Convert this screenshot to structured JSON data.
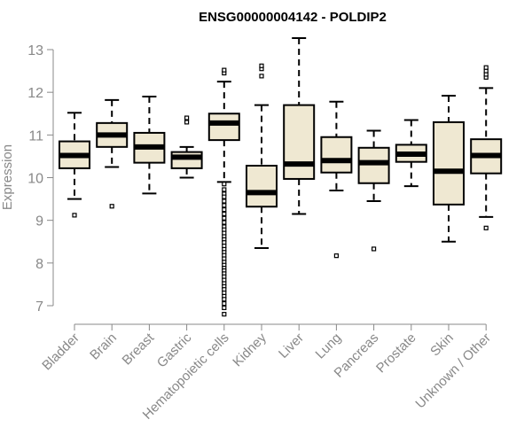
{
  "chart_data": {
    "type": "box",
    "title": "ENSG00000004142 - POLDIP2",
    "xlabel": "",
    "ylabel": "Expression",
    "ylim": [
      6.7,
      13.3
    ],
    "yticks": [
      7,
      8,
      9,
      10,
      11,
      12,
      13
    ],
    "grid": false,
    "colors": {
      "box_fill": "#efe8d2",
      "stroke": "#000000",
      "axis": "#888888",
      "text": "#888888"
    },
    "categories": [
      "Bladder",
      "Brain",
      "Breast",
      "Gastric",
      "Hematopoietic cells",
      "Kidney",
      "Liver",
      "Lung",
      "Pancreas",
      "Prostate",
      "Skin",
      "Unknown / Other"
    ],
    "boxes": [
      {
        "name": "Bladder",
        "whisker_low": 9.5,
        "q1": 10.22,
        "median": 10.52,
        "q3": 10.85,
        "whisker_high": 11.52,
        "outliers": [
          9.12
        ]
      },
      {
        "name": "Brain",
        "whisker_low": 10.25,
        "q1": 10.72,
        "median": 11.0,
        "q3": 11.28,
        "whisker_high": 11.82,
        "outliers": [
          9.33
        ]
      },
      {
        "name": "Breast",
        "whisker_low": 9.63,
        "q1": 10.35,
        "median": 10.72,
        "q3": 11.05,
        "whisker_high": 11.9,
        "outliers": []
      },
      {
        "name": "Gastric",
        "whisker_low": 10.0,
        "q1": 10.22,
        "median": 10.48,
        "q3": 10.6,
        "whisker_high": 10.72,
        "outliers": [
          11.3,
          11.4
        ]
      },
      {
        "name": "Hematopoietic cells",
        "whisker_low": 9.9,
        "q1": 10.88,
        "median": 11.28,
        "q3": 11.5,
        "whisker_high": 12.25,
        "outliers": [
          12.45,
          12.52,
          9.85,
          9.72,
          9.62,
          9.55,
          9.45,
          9.35,
          9.25,
          9.15,
          9.05,
          8.95,
          8.85,
          8.78,
          8.7,
          8.62,
          8.55,
          8.48,
          8.4,
          8.32,
          8.25,
          8.18,
          8.1,
          8.02,
          7.95,
          7.88,
          7.82,
          7.75,
          7.68,
          7.6,
          7.52,
          7.45,
          7.38,
          7.3,
          7.22,
          7.15,
          7.05,
          6.95,
          6.8
        ]
      },
      {
        "name": "Kidney",
        "whisker_low": 8.35,
        "q1": 9.32,
        "median": 9.65,
        "q3": 10.28,
        "whisker_high": 11.7,
        "outliers": [
          12.38,
          12.55,
          12.62
        ]
      },
      {
        "name": "Liver",
        "whisker_low": 9.15,
        "q1": 9.97,
        "median": 10.32,
        "q3": 11.7,
        "whisker_high": 13.27,
        "outliers": []
      },
      {
        "name": "Lung",
        "whisker_low": 9.7,
        "q1": 10.12,
        "median": 10.4,
        "q3": 10.95,
        "whisker_high": 11.78,
        "outliers": [
          8.17
        ]
      },
      {
        "name": "Pancreas",
        "whisker_low": 9.45,
        "q1": 9.87,
        "median": 10.35,
        "q3": 10.7,
        "whisker_high": 11.1,
        "outliers": [
          8.33
        ]
      },
      {
        "name": "Prostate",
        "whisker_low": 9.8,
        "q1": 10.37,
        "median": 10.55,
        "q3": 10.77,
        "whisker_high": 11.35,
        "outliers": []
      },
      {
        "name": "Skin",
        "whisker_low": 8.5,
        "q1": 9.37,
        "median": 10.15,
        "q3": 11.3,
        "whisker_high": 11.92,
        "outliers": []
      },
      {
        "name": "Unknown / Other",
        "whisker_low": 9.08,
        "q1": 10.1,
        "median": 10.52,
        "q3": 10.9,
        "whisker_high": 12.1,
        "outliers": [
          12.35,
          12.42,
          12.5,
          12.58,
          8.82
        ]
      }
    ]
  }
}
